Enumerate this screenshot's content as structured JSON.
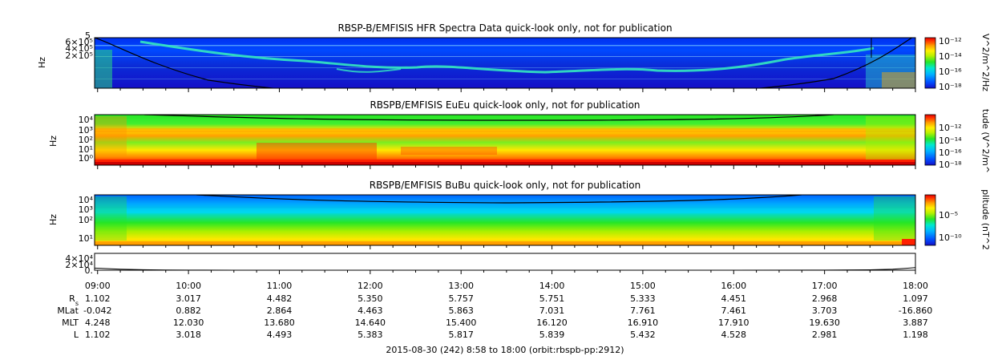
{
  "colors": {
    "scale": [
      "#1410c8",
      "#0050ff",
      "#00b4ff",
      "#00e8d0",
      "#26e626",
      "#b8f000",
      "#fff000",
      "#ffa000",
      "#ff3000",
      "#e60000"
    ]
  },
  "chart_data": [
    {
      "type": "heatmap",
      "title": "RBSP-B/EMFISIS  HFR Spectra Data quick-look only, not for publication",
      "ylabel": "Hz",
      "y_ticks": [
        "6×10⁵",
        "4×10⁵",
        "2×10⁵"
      ],
      "y_top_fragment": "5",
      "colorbar": {
        "label": "V^2/m^2/Hz",
        "ticks": [
          "10⁻¹²",
          "10⁻¹⁴",
          "10⁻¹⁶",
          "10⁻¹⁸"
        ]
      },
      "overlay": "black density/cyclotron line, falling from top-left, rising at right; near-vertical line at ~17:30"
    },
    {
      "type": "heatmap",
      "title": "RBSPB/EMFISIS  EuEu quick-look only, not for publication",
      "ylabel": "Hz",
      "y_ticks": [
        "10⁴",
        "10³",
        "10²",
        "10¹",
        "10⁰"
      ],
      "colorbar": {
        "label": "tude (V^2/m^",
        "ticks": [
          "10⁻¹²",
          "10⁻¹⁴",
          "10⁻¹⁶",
          "10⁻¹⁸"
        ]
      },
      "overlay": "black fce line near the top of the panel"
    },
    {
      "type": "heatmap",
      "title": "RBSPB/EMFISIS  BuBu quick-look only, not for publication",
      "ylabel": "Hz",
      "y_ticks": [
        "10⁴",
        "10³",
        "10²",
        "10¹"
      ],
      "colorbar": {
        "label": "plitude (nT^2",
        "ticks": [
          "10⁻⁵",
          "10⁻¹⁰"
        ]
      },
      "overlay": "black fce line near the top of the panel"
    },
    {
      "type": "line",
      "y_ticks": [
        "4×10⁴",
        "2×10⁴",
        "0."
      ],
      "ylim": [
        0,
        40000
      ],
      "x": [
        8.967,
        9.25,
        9.5,
        9.75,
        10.0,
        10.5,
        11.0,
        12.0,
        13.0,
        14.0,
        15.0,
        16.0,
        17.0,
        17.5,
        17.75,
        17.9,
        18.0
      ],
      "y": [
        5000,
        2500,
        1200,
        500,
        250,
        80,
        40,
        20,
        15,
        15,
        20,
        50,
        250,
        900,
        2500,
        4500,
        6200
      ]
    }
  ],
  "x_axis": {
    "ticks": [
      "09:00",
      "10:00",
      "11:00",
      "12:00",
      "13:00",
      "14:00",
      "15:00",
      "16:00",
      "17:00",
      "18:00"
    ],
    "hours": [
      9,
      10,
      11,
      12,
      13,
      14,
      15,
      16,
      17,
      18
    ],
    "range_hours": [
      8.967,
      18.0
    ]
  },
  "ephemeris": [
    {
      "label": "R",
      "sub": "s",
      "values": [
        "1.102",
        "3.017",
        "4.482",
        "5.350",
        "5.757",
        "5.751",
        "5.333",
        "4.451",
        "2.968",
        "1.097"
      ]
    },
    {
      "label": "MLat",
      "sub": "",
      "values": [
        "-0.042",
        "0.882",
        "2.864",
        "4.463",
        "5.863",
        "7.031",
        "7.761",
        "7.461",
        "3.703",
        "-16.860"
      ]
    },
    {
      "label": "MLT",
      "sub": "",
      "values": [
        "4.248",
        "12.030",
        "13.680",
        "14.640",
        "15.400",
        "16.120",
        "16.910",
        "17.910",
        "19.630",
        "3.887"
      ]
    },
    {
      "label": "L",
      "sub": "",
      "values": [
        "1.102",
        "3.018",
        "4.493",
        "5.383",
        "5.817",
        "5.839",
        "5.432",
        "4.528",
        "2.981",
        "1.198"
      ]
    }
  ],
  "footer": "2015-08-30 (242) 8:58 to 18:00 (orbit:rbspb-pp:2912)"
}
